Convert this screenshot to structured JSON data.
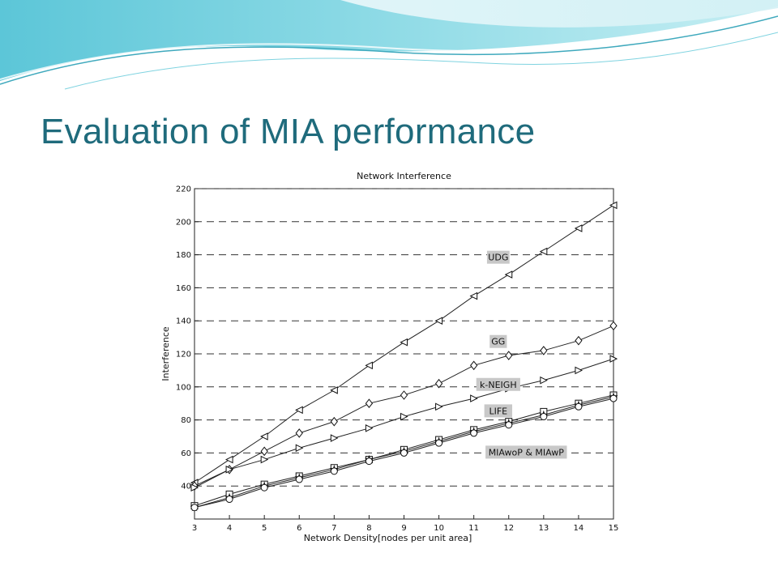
{
  "slide": {
    "title": "Evaluation of MIA performance",
    "accent_color": "#1f6b7c"
  },
  "chart_data": {
    "type": "line",
    "title": "Network Interference",
    "xlabel": "Network Density[nodes per unit area]",
    "ylabel": "Interference",
    "xlim": [
      3,
      15
    ],
    "ylim": [
      20,
      220
    ],
    "x": [
      3,
      4,
      5,
      6,
      7,
      8,
      9,
      10,
      11,
      12,
      13,
      14,
      15
    ],
    "x_ticks": [
      3,
      4,
      5,
      6,
      7,
      8,
      9,
      10,
      11,
      12,
      13,
      14,
      15
    ],
    "y_ticks": [
      40,
      60,
      80,
      100,
      120,
      140,
      160,
      180,
      200,
      220
    ],
    "grid": "horizontal dashed",
    "series": [
      {
        "name": "UDG",
        "marker": "triangle-left",
        "values": [
          42,
          56,
          70,
          86,
          98,
          113,
          127,
          140,
          155,
          168,
          182,
          196,
          210
        ]
      },
      {
        "name": "GG",
        "marker": "diamond",
        "values": [
          40,
          50,
          61,
          72,
          79,
          90,
          95,
          102,
          113,
          119,
          122,
          128,
          137
        ]
      },
      {
        "name": "k-NEIGH",
        "marker": "triangle-right",
        "values": [
          39,
          50,
          56,
          63,
          69,
          75,
          82,
          88,
          93,
          99,
          104,
          110,
          117
        ]
      },
      {
        "name": "LIFE",
        "marker": "square",
        "values": [
          28,
          35,
          41,
          46,
          51,
          56,
          62,
          68,
          74,
          79,
          85,
          90,
          95
        ]
      },
      {
        "name": "MIAwoP & MIAwP",
        "marker": "star",
        "values": [
          27,
          33,
          40,
          45,
          50,
          56,
          61,
          67,
          73,
          78,
          83,
          89,
          94
        ]
      },
      {
        "name": "",
        "marker": "circle",
        "values": [
          27,
          32,
          39,
          44,
          49,
          55,
          60,
          66,
          72,
          77,
          82,
          88,
          93
        ]
      }
    ],
    "annotations": [
      {
        "text": "UDG",
        "x": 11.7,
        "y": 178
      },
      {
        "text": "GG",
        "x": 11.7,
        "y": 127
      },
      {
        "text": "k-NEIGH",
        "x": 11.7,
        "y": 101
      },
      {
        "text": "LIFE",
        "x": 11.7,
        "y": 85
      },
      {
        "text": "MIAwoP & MIAwP",
        "x": 12.5,
        "y": 60
      }
    ]
  }
}
